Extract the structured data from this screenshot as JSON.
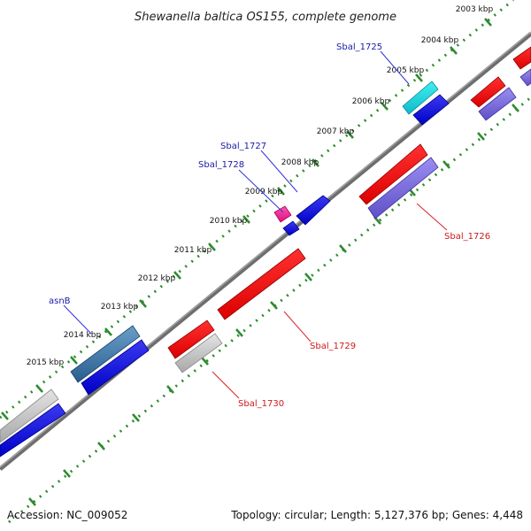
{
  "title": "Shewanella baltica OS155, complete genome",
  "footer": {
    "accession": "Accession: NC_009052",
    "summary": "Topology: circular; Length: 5,127,376 bp; Genes: 4,448"
  },
  "colors": {
    "backbone": "#777777",
    "ticks": "#2e8b2e",
    "label_forward": "#1a1aa6",
    "label_reverse": "#cc1a1a",
    "callout_forward": "#3333dd",
    "callout_reverse": "#dd2222"
  },
  "ticks": [
    {
      "label": "2003 kbp"
    },
    {
      "label": "2004 kbp"
    },
    {
      "label": "2005 kbp"
    },
    {
      "label": "2006 kbp"
    },
    {
      "label": "2007 kbp"
    },
    {
      "label": "2008 kbp"
    },
    {
      "label": "2009 kbp"
    },
    {
      "label": "2010 kbp"
    },
    {
      "label": "2011 kbp"
    },
    {
      "label": "2012 kbp"
    },
    {
      "label": "2013 kbp"
    },
    {
      "label": "2014 kbp"
    },
    {
      "label": "2015 kbp"
    }
  ],
  "gene_labels": [
    {
      "text": "Sbal_1725",
      "strand": "forward"
    },
    {
      "text": "Sbal_1727",
      "strand": "forward"
    },
    {
      "text": "Sbal_1728",
      "strand": "forward"
    },
    {
      "text": "asnB",
      "strand": "forward"
    },
    {
      "text": "Sbal_1726",
      "strand": "reverse"
    },
    {
      "text": "Sbal_1729",
      "strand": "reverse"
    },
    {
      "text": "Sbal_1730",
      "strand": "reverse"
    }
  ]
}
